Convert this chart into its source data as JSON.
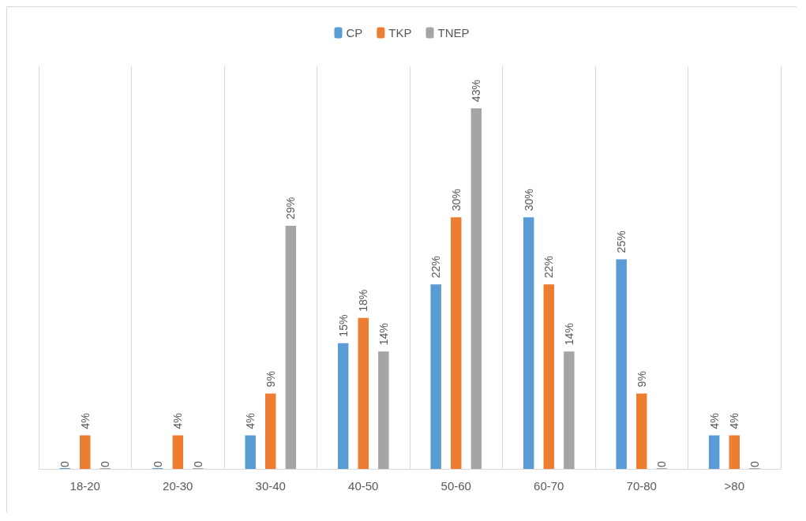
{
  "chart_data": {
    "type": "bar",
    "categories": [
      "18-20",
      "20-30",
      "30-40",
      "40-50",
      "50-60",
      "60-70",
      "70-80",
      ">80"
    ],
    "series": [
      {
        "name": "CP",
        "color": "#5b9bd5",
        "values": [
          0,
          0,
          4,
          15,
          22,
          30,
          25,
          4
        ],
        "value_labels": [
          "0",
          "0",
          "4%",
          "15%",
          "22%",
          "30%",
          "25%",
          "4%"
        ]
      },
      {
        "name": "TKP",
        "color": "#ed7d31",
        "values": [
          4,
          4,
          9,
          18,
          30,
          22,
          9,
          4
        ],
        "value_labels": [
          "4%",
          "4%",
          "9%",
          "18%",
          "30%",
          "22%",
          "9%",
          "4%"
        ]
      },
      {
        "name": "TNEP",
        "color": "#a5a5a5",
        "values": [
          0,
          0,
          29,
          14,
          43,
          14,
          0,
          0
        ],
        "value_labels": [
          "0",
          "0",
          "29%",
          "14%",
          "43%",
          "14%",
          "0",
          "0"
        ]
      }
    ],
    "legend": "top",
    "grid": "x",
    "tick_labels": "x"
  }
}
